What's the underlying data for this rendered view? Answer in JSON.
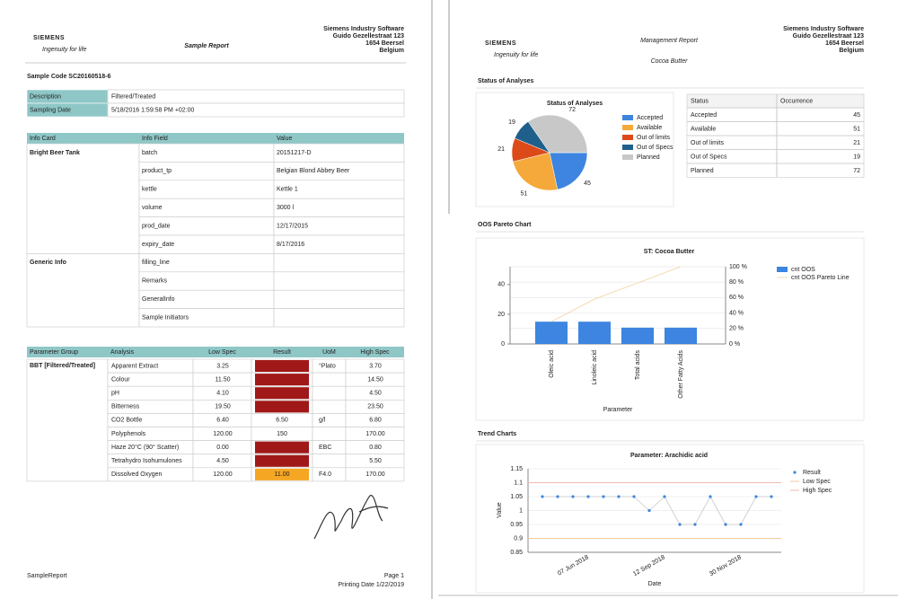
{
  "sample_report": {
    "header": {
      "logo": "SIEMENS",
      "tagline": "Ingenuity for life",
      "title": "Sample Report",
      "address": [
        "Siemens Industry Software",
        "Guido Gezellestraat 123",
        "1654 Beersel",
        "Belgium"
      ]
    },
    "sample_code": "Sample Code SC20160518-6",
    "summary": {
      "rows": [
        [
          "Description",
          "Filtered/Treated"
        ],
        [
          "Sampling Date",
          "5/18/2016 1:59:58 PM +02:00"
        ]
      ]
    },
    "info_table": {
      "columns": [
        "Info Card",
        "Info Field",
        "Value"
      ],
      "groups": [
        {
          "name": "Bright Beer Tank",
          "rows": [
            [
              "batch",
              "20151217-D"
            ],
            [
              "product_tp",
              "Belgian Blond Abbey Beer"
            ],
            [
              "kettle",
              "Kettle 1"
            ],
            [
              "volume",
              "3000 l"
            ],
            [
              "prod_date",
              "12/17/2015"
            ],
            [
              "expiry_date",
              "8/17/2016"
            ]
          ]
        },
        {
          "name": "Generic Info",
          "rows": [
            [
              "filling_line"
            ],
            [
              "Remarks"
            ],
            [
              "GeneralInfo"
            ],
            [
              "Sample Initiators"
            ]
          ]
        }
      ]
    },
    "parameter_table": {
      "columns": [
        "Parameter Group",
        "Analysis",
        "Low Spec",
        "Result",
        "UoM",
        "High Spec"
      ],
      "group": "BBT [Filtered/Treated]",
      "rows": [
        {
          "analysis": "Apparent Extract",
          "low": "3.25",
          "result_color": "#a01818",
          "uom": "°Plato",
          "high": "3.70"
        },
        {
          "analysis": "Colour",
          "low": "11.50",
          "result_color": "#a01818",
          "high": "14.50"
        },
        {
          "analysis": "pH",
          "low": "4.10",
          "result_color": "#a01818",
          "high": "4.50"
        },
        {
          "analysis": "Bitterness",
          "low": "19.50",
          "result_color": "#a01818",
          "high": "23.50"
        },
        {
          "analysis": "CO2 Bottle",
          "low": "6.40",
          "result": "6.50",
          "uom": "g/l",
          "high": "6.80"
        },
        {
          "analysis": "Polyphenols",
          "low": "120.00",
          "result": "150",
          "high": "170.00"
        },
        {
          "analysis": "Haze 20°C (90° Scatter)",
          "low": "0.00",
          "result_color": "#a01818",
          "uom": "EBC",
          "high": "0.80"
        },
        {
          "analysis": "Tetrahydro Isohumulones",
          "low": "4.50",
          "result_color": "#a01818",
          "high": "5.50"
        },
        {
          "analysis": "Dissolved Oxygen",
          "low": "120.00",
          "result": "11.00",
          "result_color": "#f5a623",
          "uom": "F4.0",
          "high": "170.00"
        }
      ]
    },
    "footer": {
      "name": "SampleReport",
      "page": "Page 1",
      "printing_date": "Printing Date 1/22/2019"
    }
  },
  "management_report": {
    "header": {
      "logo": "SIEMENS",
      "tagline": "Ingenuity for life",
      "title": "Management Report",
      "subtitle": "Cocoa Butter",
      "address": [
        "Siemens Industry Software",
        "Guido Gezellestraat 123",
        "1654 Beersel",
        "Belgium"
      ]
    },
    "status_section": "Status of Analyses",
    "status_chart": {
      "type": "pie",
      "title": "Status of Analyses",
      "categories": [
        "Accepted",
        "Available",
        "Out of limits",
        "Out of Specs",
        "Planned"
      ],
      "values": [
        45,
        51,
        21,
        19,
        72
      ],
      "colors": [
        "#3d85e0",
        "#f5a93a",
        "#dd4a1a",
        "#1f5f8b",
        "#c8c8c8"
      ]
    },
    "status_table": {
      "columns": [
        "Status",
        "Occurrence"
      ]
    },
    "pareto_section": "OOS Pareto Chart",
    "pareto_chart": {
      "type": "bar",
      "title": "ST: Cocoa Butter",
      "x_label": "Parameter",
      "categories": [
        "Oleic acid",
        "Linoleic acid",
        "Total acids",
        "Other Fatty Acids"
      ],
      "series": [
        {
          "name": "cnt OOS",
          "color": "#3d85e0",
          "values": [
            15,
            15,
            11,
            11
          ]
        },
        {
          "name": "cnt OOS Pareto Line",
          "color": "#f3dcb0",
          "axis": "y2",
          "values": [
            29,
            58,
            79,
            100
          ]
        }
      ],
      "ylim": [
        0,
        52
      ],
      "yticks": [
        0,
        20,
        40
      ],
      "y2lim": [
        0,
        100
      ],
      "y2ticks": [
        {
          "value": 0,
          "label": "0 %"
        },
        {
          "value": 20,
          "label": "20 %"
        },
        {
          "value": 40,
          "label": "40 %"
        },
        {
          "value": 60,
          "label": "60 %"
        },
        {
          "value": 80,
          "label": "80 %"
        },
        {
          "value": 100,
          "label": "100 %"
        }
      ]
    },
    "trend_section": "Trend Charts",
    "trend_chart": {
      "type": "line",
      "title": "Parameter: Arachidic acid",
      "x_label": "Date",
      "y_label": "Value",
      "categories": [
        null,
        null,
        null,
        "07 Jun 2018",
        null,
        null,
        null,
        null,
        "12 Sep 2018",
        null,
        null,
        null,
        null,
        "30 Nov 2018",
        null,
        null
      ],
      "series": [
        {
          "name": "Result",
          "color": "#3d85e0",
          "values": [
            1.05,
            1.05,
            1.05,
            1.05,
            1.05,
            1.05,
            1.05,
            1.0,
            1.05,
            0.95,
            0.95,
            1.05,
            0.95,
            0.95,
            1.05,
            1.05
          ]
        }
      ],
      "limits": [
        {
          "name": "Low Spec",
          "color": "#f3c9a0",
          "value": 0.9
        },
        {
          "name": "High Spec",
          "color": "#f0b7b7",
          "value": 1.1
        }
      ],
      "ylim": [
        0.85,
        1.15
      ],
      "yticks": [
        0.85,
        0.9,
        0.95,
        1,
        1.05,
        1.1,
        1.15
      ]
    }
  }
}
